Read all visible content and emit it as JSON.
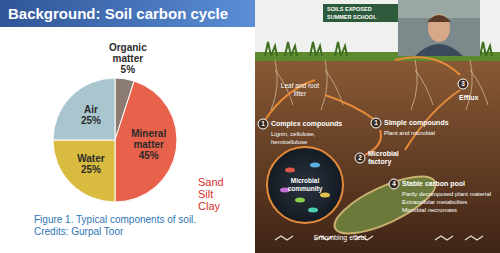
{
  "title": "Background: Soil carbon cycle",
  "chart_data": {
    "type": "pie",
    "categories": [
      "Organic matter",
      "Mineral matter",
      "Water",
      "Air"
    ],
    "values": [
      5,
      45,
      25,
      25
    ],
    "value_labels": [
      "5%",
      "45%",
      "25%",
      "25%"
    ],
    "colors": [
      "#8c7d72",
      "#e8614a",
      "#d9bb3f",
      "#a9c6cf"
    ],
    "data_labels": true,
    "annotations": [
      "Sand",
      "Silt",
      "Clay"
    ]
  },
  "caption": [
    "Figure 1. Typical components of soil.",
    "Credits: Gurpal Toor"
  ],
  "banner": [
    "SOILS EXPOSED",
    "SUMMER SCHOOL"
  ],
  "diagram": {
    "litter": [
      "Leaf and root",
      "litter"
    ],
    "steps": [
      {
        "number": 1,
        "title": [
          "Complex compounds"
        ],
        "detail": [
          "Lignin, cellulose,",
          "hemicellulose"
        ]
      },
      {
        "number": 1,
        "title": [
          "Simple compounds"
        ],
        "detail": [
          "Plant and microbial"
        ]
      },
      {
        "number": 2,
        "title": [
          "Microbial",
          "factory"
        ]
      },
      {
        "number": 3,
        "title": [
          "Efflux"
        ]
      },
      {
        "number": 4,
        "title": [
          "Stable carbon pool"
        ],
        "detail": [
          "Partly decomposed plant material",
          "Extracellular metabolites",
          "Microbial necromass"
        ]
      }
    ],
    "microbes": [
      "Microbial",
      "community"
    ],
    "entombing": "Entombing effect"
  }
}
